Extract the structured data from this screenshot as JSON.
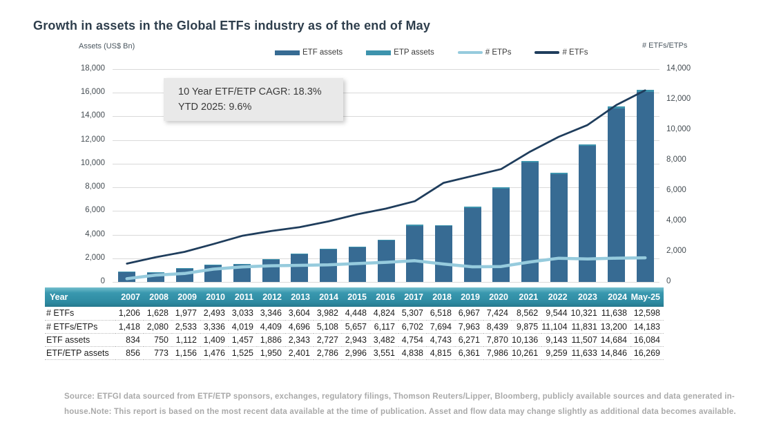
{
  "title": "Growth in assets in the Global ETFs industry as of the end of May",
  "axis_left_title": "Assets (US$ Bn)",
  "axis_right_title": "# ETFs/ETPs",
  "annotation": {
    "line1": "10 Year ETF/ETP CAGR: 18.3%",
    "line2": "YTD 2025: 9.6%"
  },
  "colors": {
    "etf_assets_bar": "#376b93",
    "etp_assets_bar": "#3d93ad",
    "num_etps_line": "#96cbdd",
    "num_etfs_line": "#1f3d5c",
    "gridline": "#d9d9d9"
  },
  "chart_data": {
    "type": "bar",
    "subtype": "stacked bars (left axis) with two lines (right axis)",
    "title": "Growth in assets in the Global ETFs industry as of the end of May",
    "categories": [
      "2007",
      "2008",
      "2009",
      "2010",
      "2011",
      "2012",
      "2013",
      "2014",
      "2015",
      "2016",
      "2017",
      "2018",
      "2019",
      "2020",
      "2021",
      "2022",
      "2023",
      "2024",
      "May-25"
    ],
    "series": [
      {
        "name": "ETF assets",
        "type": "bar",
        "axis": "left",
        "color": "#376b93",
        "values": [
          834,
          750,
          1112,
          1409,
          1457,
          1886,
          2343,
          2727,
          2943,
          3482,
          4754,
          4743,
          6271,
          7870,
          10136,
          9143,
          11507,
          14684,
          16084
        ]
      },
      {
        "name": "ETP assets",
        "type": "bar-stacked-on-top",
        "axis": "left",
        "color": "#3d93ad",
        "values": [
          22,
          23,
          44,
          67,
          68,
          64,
          58,
          59,
          53,
          69,
          84,
          72,
          90,
          116,
          125,
          116,
          126,
          162,
          185
        ]
      },
      {
        "name": "# ETPs",
        "type": "line",
        "axis": "right",
        "color": "#96cbdd",
        "values": [
          212,
          452,
          556,
          843,
          986,
          1063,
          1092,
          1126,
          1209,
          1293,
          1395,
          1176,
          996,
          1015,
          1313,
          1560,
          1510,
          1562,
          1585
        ]
      },
      {
        "name": "# ETFs",
        "type": "line",
        "axis": "right",
        "color": "#1f3d5c",
        "values": [
          1206,
          1628,
          1977,
          2493,
          3033,
          3346,
          3604,
          3982,
          4448,
          4824,
          5307,
          6518,
          6967,
          7424,
          8562,
          9544,
          10321,
          11638,
          12598
        ]
      }
    ],
    "left_axis": {
      "label": "Assets (US$ Bn)",
      "min": 0,
      "max": 18000,
      "step": 2000,
      "tick_labels": [
        "18,000",
        "16,000",
        "14,000",
        "12,000",
        "10,000",
        "8,000",
        "6,000",
        "4,000",
        "2,000",
        "0"
      ]
    },
    "right_axis": {
      "label": "# ETFs/ETPs",
      "min": 0,
      "max": 14000,
      "step": 2000,
      "tick_labels": [
        "14,000",
        "12,000",
        "10,000",
        "8,000",
        "6,000",
        "4,000",
        "2,000",
        "0"
      ]
    },
    "grid": true,
    "legend_position": "top",
    "legend": [
      {
        "label": "ETF assets",
        "marker": "bar",
        "color": "#376b93"
      },
      {
        "label": "ETP assets",
        "marker": "bar",
        "color": "#3d93ad"
      },
      {
        "label": "# ETPs",
        "marker": "line",
        "color": "#96cbdd"
      },
      {
        "label": "# ETFs",
        "marker": "line",
        "color": "#1f3d5c"
      }
    ]
  },
  "table": {
    "header": [
      "Year",
      "2007",
      "2008",
      "2009",
      "2010",
      "2011",
      "2012",
      "2013",
      "2014",
      "2015",
      "2016",
      "2017",
      "2018",
      "2019",
      "2020",
      "2021",
      "2022",
      "2023",
      "2024",
      "May-25"
    ],
    "rows": [
      {
        "label": "# ETFs",
        "values": [
          "1,206",
          "1,628",
          "1,977",
          "2,493",
          "3,033",
          "3,346",
          "3,604",
          "3,982",
          "4,448",
          "4,824",
          "5,307",
          "6,518",
          "6,967",
          "7,424",
          "8,562",
          "9,544",
          "10,321",
          "11,638",
          "12,598"
        ]
      },
      {
        "label": "# ETFs/ETPs",
        "values": [
          "1,418",
          "2,080",
          "2,533",
          "3,336",
          "4,019",
          "4,409",
          "4,696",
          "5,108",
          "5,657",
          "6,117",
          "6,702",
          "7,694",
          "7,963",
          "8,439",
          "9,875",
          "11,104",
          "11,831",
          "13,200",
          "14,183"
        ]
      },
      {
        "label": "ETF assets",
        "values": [
          "834",
          "750",
          "1,112",
          "1,409",
          "1,457",
          "1,886",
          "2,343",
          "2,727",
          "2,943",
          "3,482",
          "4,754",
          "4,743",
          "6,271",
          "7,870",
          "10,136",
          "9,143",
          "11,507",
          "14,684",
          "16,084"
        ]
      },
      {
        "label": "ETF/ETP assets",
        "values": [
          "856",
          "773",
          "1,156",
          "1,476",
          "1,525",
          "1,950",
          "2,401",
          "2,786",
          "2,996",
          "3,551",
          "4,838",
          "4,815",
          "6,361",
          "7,986",
          "10,261",
          "9,259",
          "11,633",
          "14,846",
          "16,269"
        ]
      }
    ]
  },
  "source_text": "Source: ETFGI data sourced from ETF/ETP sponsors, exchanges, regulatory filings, Thomson Reuters/Lipper, Bloomberg, publicly available sources and data generated in-house.Note: This report is based on the most recent data available at the time of publication. Asset and flow data may change slightly as additional data becomes available."
}
